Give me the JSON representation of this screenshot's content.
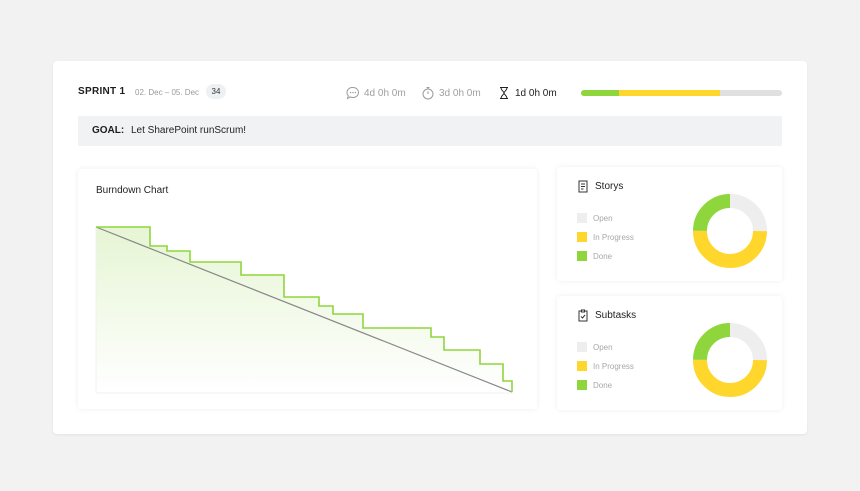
{
  "sprint": {
    "title": "SPRINT 1",
    "dates": "02. Dec – 05. Dec",
    "badge": "34"
  },
  "stats": [
    {
      "icon": "chat-bubble-icon",
      "value": "4d 0h 0m",
      "active": false
    },
    {
      "icon": "stopwatch-icon",
      "value": "3d 0h 0m",
      "active": false
    },
    {
      "icon": "hourglass-icon",
      "value": "1d 0h 0m",
      "active": true
    }
  ],
  "progress": {
    "done_fraction": 0.19,
    "in_progress_fraction": 0.5
  },
  "goal": {
    "label": "GOAL:",
    "text": "Let SharePoint runScrum!"
  },
  "burndown": {
    "title": "Burndown Chart"
  },
  "colors": {
    "done": "#8fd63c",
    "in_progress": "#ffd62b",
    "open": "#eeeeee",
    "ideal_line": "#8a8a8a"
  },
  "stories": {
    "title": "Storys",
    "legend": [
      "Open",
      "In Progress",
      "Done"
    ],
    "values": {
      "open": 0.25,
      "in_progress": 0.5,
      "done": 0.25
    }
  },
  "subtasks": {
    "title": "Subtasks",
    "legend": [
      "Open",
      "In Progress",
      "Done"
    ],
    "values": {
      "open": 0.25,
      "in_progress": 0.5,
      "done": 0.25
    }
  }
}
